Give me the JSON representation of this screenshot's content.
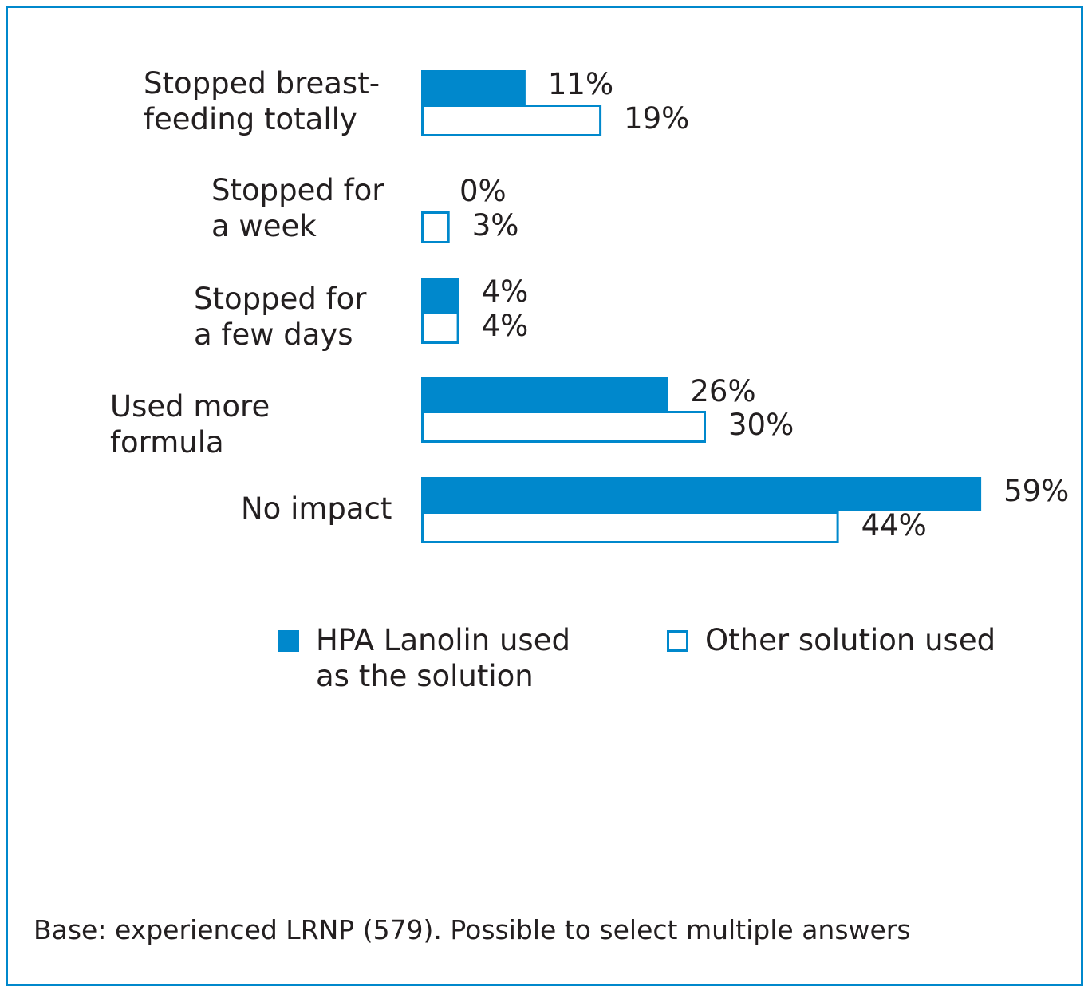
{
  "colors": {
    "accent": "#0088cc",
    "text": "#231f20",
    "background": "#ffffff"
  },
  "chart_data": {
    "type": "bar",
    "orientation": "horizontal",
    "categories": [
      "Stopped breast-\nfeeding totally",
      "Stopped for\na week",
      "Stopped for\na few days",
      "Used more formula",
      "No impact"
    ],
    "series": [
      {
        "name": "HPA Lanolin used as the solution",
        "values": [
          11,
          0,
          4,
          26,
          59
        ],
        "labels": [
          "11%",
          "0%",
          "4%",
          "26%",
          "59%"
        ],
        "style": "filled"
      },
      {
        "name": "Other solution used",
        "values": [
          19,
          3,
          4,
          30,
          44
        ],
        "labels": [
          "19%",
          "3%",
          "4%",
          "30%",
          "44%"
        ],
        "style": "outline"
      }
    ],
    "legend": [
      {
        "label": "HPA Lanolin used\nas the solution",
        "style": "filled"
      },
      {
        "label": "Other solution used",
        "style": "outline"
      }
    ],
    "legend_position": "bottom",
    "grid": false,
    "xlim": [
      0,
      59
    ]
  },
  "footnote": "Base: experienced LRNP (579). Possible to select multiple answers"
}
